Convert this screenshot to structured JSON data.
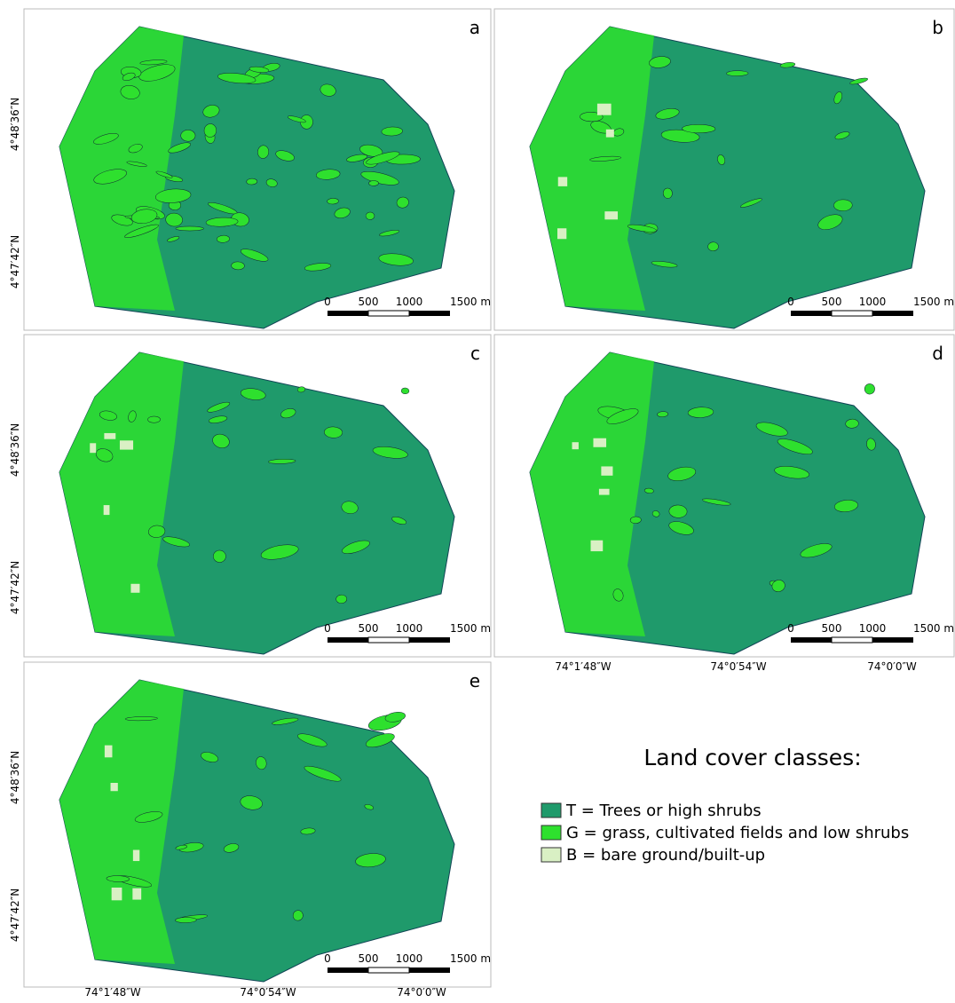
{
  "panels": [
    {
      "label": "a"
    },
    {
      "label": "b"
    },
    {
      "label": "c"
    },
    {
      "label": "d"
    },
    {
      "label": "e"
    }
  ],
  "latitude_labels": [
    "4°48′36″N",
    "4°47′42″N"
  ],
  "longitude_labels": [
    "74°1′48″W",
    "74°0′54″W",
    "74°0′0″W"
  ],
  "scale_bar": {
    "labels": [
      "0",
      "500",
      "1000",
      "1500 m"
    ]
  },
  "legend": {
    "title": "Land cover classes:",
    "items": [
      {
        "text": "T = Trees or high shrubs",
        "color": "#1f9a6b"
      },
      {
        "text": "G = grass, cultivated fields and low shrubs",
        "color": "#2ee02e"
      },
      {
        "text": "B = bare ground/built-up",
        "color": "#d9f0c4"
      }
    ]
  }
}
